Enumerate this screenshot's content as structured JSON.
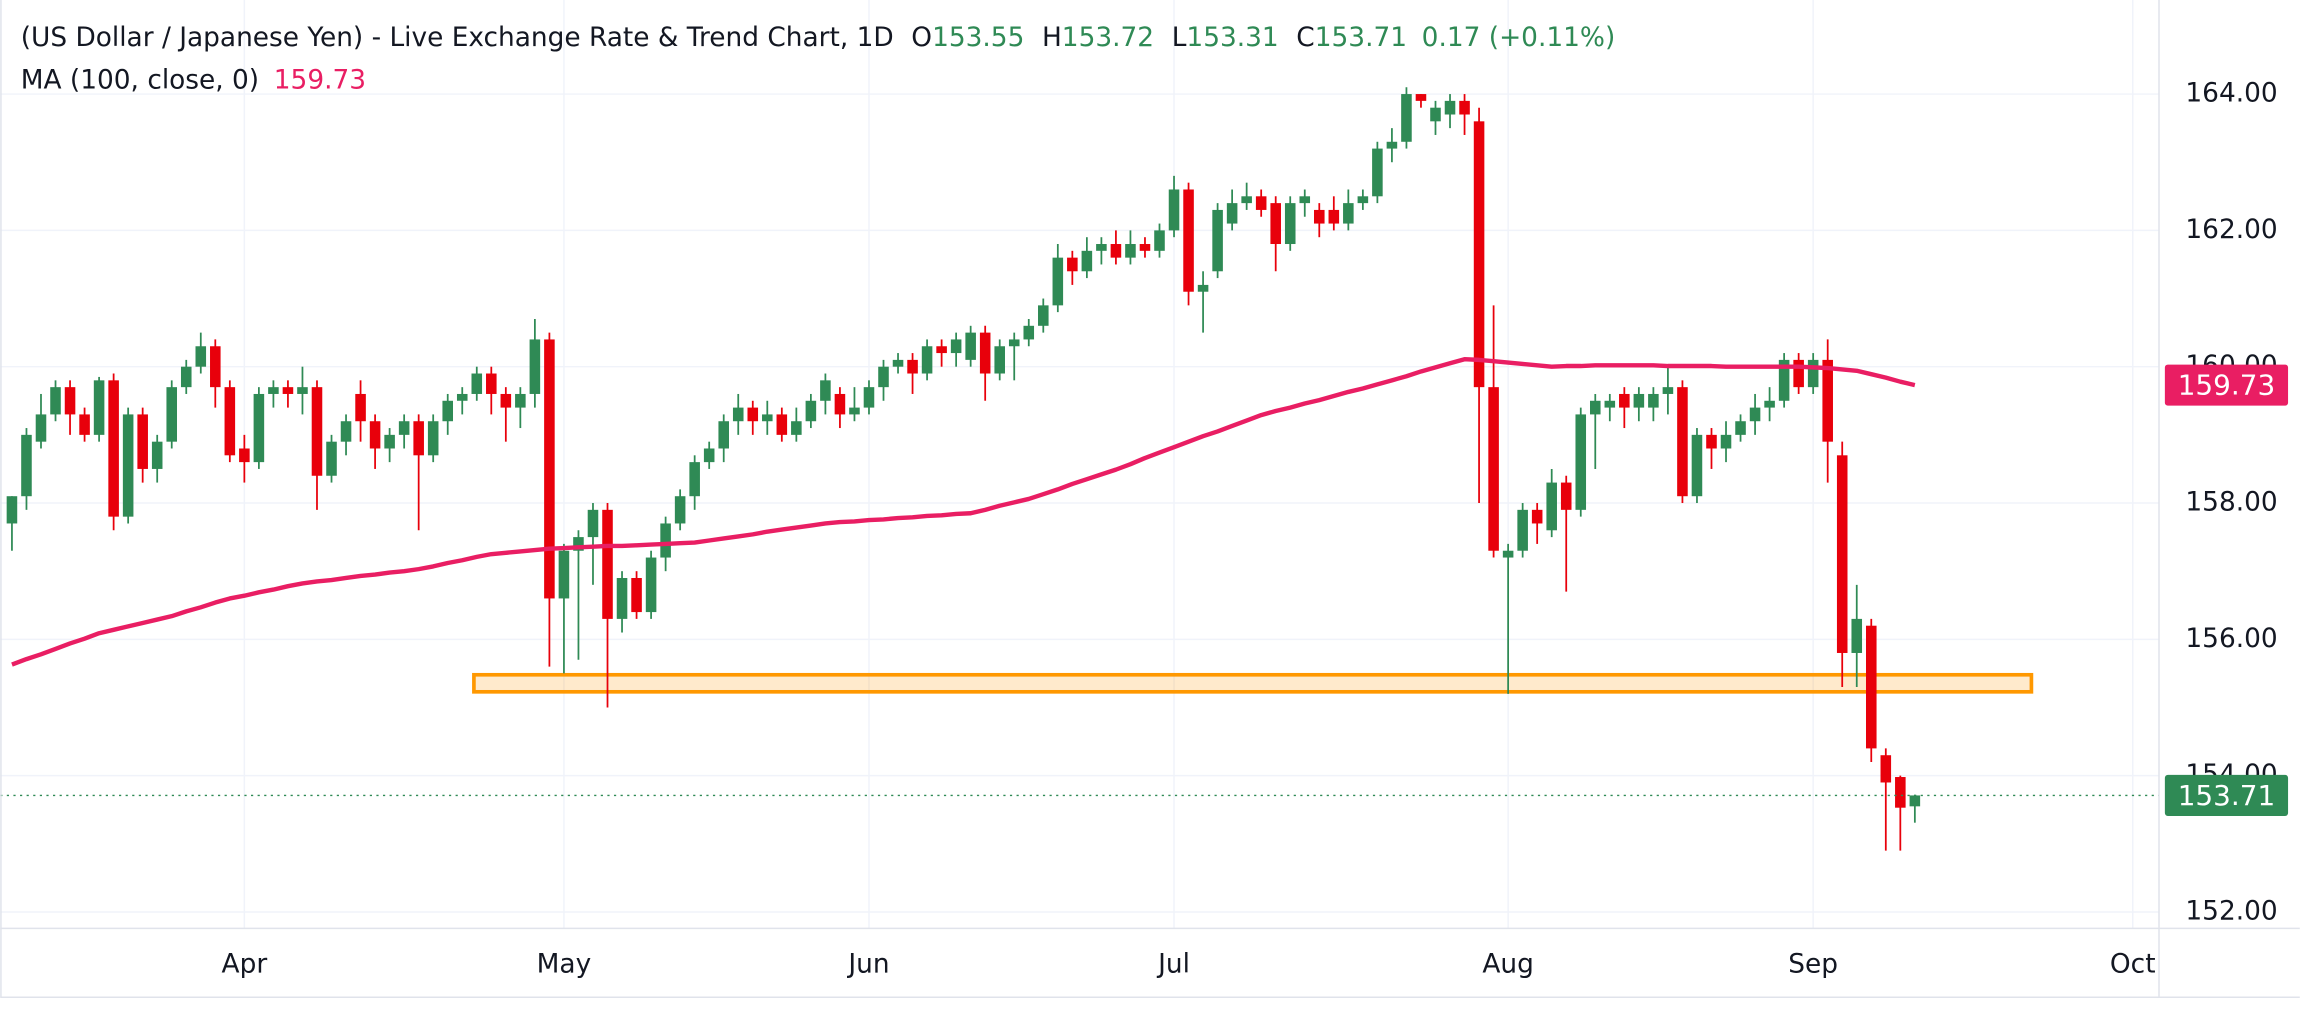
{
  "chart_data": {
    "type": "candlestick",
    "title": "(US Dollar / Japanese Yen) - Live Exchange Rate & Trend Chart, 1D",
    "ohlc_labels": [
      "O",
      "H",
      "L",
      "C"
    ],
    "change_label": "0.17 (+0.11%)",
    "up_color": "#2f8a55",
    "down_color": "#e8000b",
    "grid": true,
    "ylim": [
      151.76,
      165.38
    ],
    "yticks": [
      {
        "value": 152,
        "label": "152.00"
      },
      {
        "value": 154,
        "label": "154.00"
      },
      {
        "value": 156,
        "label": "156.00"
      },
      {
        "value": 158,
        "label": "158.00"
      },
      {
        "value": 160,
        "label": "160.00"
      },
      {
        "value": 162,
        "label": "162.00"
      },
      {
        "value": 164,
        "label": "164.00"
      }
    ],
    "zone": {
      "low": 155.23,
      "high": 155.48,
      "color": "#ff9800"
    },
    "categories": [
      null,
      null,
      null,
      null,
      null,
      null,
      null,
      null,
      null,
      null,
      null,
      null,
      null,
      null,
      null,
      null,
      "Apr",
      null,
      null,
      null,
      null,
      null,
      null,
      null,
      null,
      null,
      null,
      null,
      null,
      null,
      null,
      null,
      null,
      null,
      null,
      null,
      null,
      null,
      "May",
      null,
      null,
      null,
      null,
      null,
      null,
      null,
      null,
      null,
      null,
      null,
      null,
      null,
      null,
      null,
      null,
      null,
      null,
      null,
      null,
      "Jun",
      null,
      null,
      null,
      null,
      null,
      null,
      null,
      null,
      null,
      null,
      null,
      null,
      null,
      null,
      null,
      null,
      null,
      null,
      null,
      null,
      "Jul",
      null,
      null,
      null,
      null,
      null,
      null,
      null,
      null,
      null,
      null,
      null,
      null,
      null,
      null,
      null,
      null,
      null,
      null,
      null,
      null,
      null,
      null,
      "Aug",
      null,
      null,
      null,
      null,
      null,
      null,
      null,
      null,
      null,
      null,
      null,
      null,
      null,
      null,
      null,
      null,
      null,
      null,
      null,
      null,
      "Sep",
      null,
      null,
      null,
      null,
      null,
      null,
      null,
      null,
      null,
      null,
      null,
      null,
      null,
      null,
      null,
      null,
      null,
      null,
      null,
      null,
      null,
      "Oct",
      null
    ],
    "ohlc": {
      "open": [
        157.7,
        158.1,
        158.9,
        159.3,
        159.7,
        159.3,
        159.0,
        159.8,
        157.8,
        159.3,
        158.5,
        158.9,
        159.7,
        160.0,
        160.3,
        159.7,
        158.8,
        158.6,
        159.6,
        159.7,
        159.6,
        159.7,
        158.4,
        158.9,
        159.6,
        159.2,
        158.8,
        159.0,
        159.2,
        158.7,
        159.2,
        159.5,
        159.6,
        159.9,
        159.6,
        159.4,
        159.6,
        160.4,
        156.6,
        157.3,
        157.5,
        157.9,
        156.3,
        156.9,
        156.4,
        157.2,
        157.7,
        158.1,
        158.6,
        158.8,
        159.2,
        159.4,
        159.2,
        159.3,
        159.0,
        159.2,
        159.5,
        159.6,
        159.3,
        159.4,
        159.7,
        160.0,
        160.1,
        159.9,
        160.3,
        160.2,
        160.1,
        160.5,
        159.9,
        160.3,
        160.4,
        160.6,
        160.9,
        161.6,
        161.4,
        161.7,
        161.8,
        161.6,
        161.8,
        161.7,
        162.0,
        162.6,
        161.1,
        161.4,
        162.1,
        162.4,
        162.5,
        162.4,
        161.8,
        162.4,
        162.3,
        162.3,
        162.1,
        162.4,
        162.5,
        163.2,
        163.3,
        164.0,
        163.6,
        163.7,
        163.9,
        163.6,
        159.7,
        157.2,
        157.3,
        157.9,
        157.6,
        158.3,
        157.9,
        159.3,
        159.4,
        159.6,
        159.4,
        159.4,
        159.6,
        159.7,
        158.1,
        159.0,
        158.8,
        159.0,
        159.2,
        159.4,
        159.5,
        160.1,
        159.7,
        160.1,
        158.7,
        155.8,
        156.2,
        154.3,
        153.98,
        153.55,
        null,
        null,
        null,
        null,
        null,
        null,
        null,
        null,
        null,
        null,
        null,
        null,
        null,
        null,
        null,
        null
      ],
      "high": [
        158.1,
        159.1,
        159.6,
        159.8,
        159.8,
        159.4,
        159.85,
        159.9,
        159.4,
        159.4,
        159.0,
        159.8,
        160.1,
        160.5,
        160.4,
        159.8,
        159.0,
        159.7,
        159.8,
        159.8,
        160.0,
        159.8,
        159.0,
        159.3,
        159.8,
        159.3,
        159.1,
        159.3,
        159.3,
        159.3,
        159.6,
        159.7,
        160.0,
        160.0,
        159.7,
        159.7,
        160.7,
        160.5,
        157.4,
        157.6,
        158.0,
        158.0,
        157.0,
        157.0,
        157.3,
        157.8,
        158.2,
        158.7,
        158.9,
        159.3,
        159.6,
        159.5,
        159.5,
        159.4,
        159.4,
        159.6,
        159.9,
        159.7,
        159.7,
        159.8,
        160.1,
        160.2,
        160.2,
        160.4,
        160.4,
        160.5,
        160.6,
        160.6,
        160.4,
        160.5,
        160.7,
        161.0,
        161.8,
        161.7,
        161.9,
        161.9,
        162.0,
        162.0,
        161.9,
        162.1,
        162.8,
        162.7,
        161.4,
        162.4,
        162.6,
        162.7,
        162.6,
        162.5,
        162.5,
        162.6,
        162.4,
        162.5,
        162.6,
        162.6,
        163.3,
        163.5,
        164.1,
        164.0,
        163.9,
        164.0,
        164.0,
        163.8,
        160.9,
        157.4,
        158.0,
        158.0,
        158.5,
        158.4,
        159.4,
        159.6,
        159.6,
        159.7,
        159.7,
        159.7,
        160.0,
        159.8,
        159.1,
        159.1,
        159.2,
        159.3,
        159.6,
        159.7,
        160.2,
        160.2,
        160.2,
        160.4,
        158.9,
        156.8,
        156.3,
        154.4,
        154.0,
        153.72,
        null,
        null,
        null,
        null,
        null,
        null,
        null,
        null,
        null,
        null,
        null,
        null,
        null,
        null,
        null,
        null
      ],
      "low": [
        157.3,
        157.9,
        158.8,
        159.2,
        159.0,
        158.9,
        158.9,
        157.6,
        157.7,
        158.3,
        158.3,
        158.8,
        159.6,
        159.9,
        159.4,
        158.6,
        158.3,
        158.5,
        159.4,
        159.4,
        159.3,
        157.9,
        158.3,
        158.7,
        158.9,
        158.5,
        158.6,
        158.8,
        157.6,
        158.6,
        159.0,
        159.3,
        159.5,
        159.3,
        158.9,
        159.1,
        159.4,
        155.6,
        155.5,
        155.7,
        156.8,
        155.0,
        156.1,
        156.3,
        156.3,
        157.0,
        157.6,
        157.9,
        158.5,
        158.6,
        159.0,
        159.0,
        159.0,
        158.9,
        158.9,
        159.1,
        159.3,
        159.1,
        159.2,
        159.3,
        159.5,
        159.9,
        159.6,
        159.8,
        160.0,
        160.0,
        160.0,
        159.5,
        159.8,
        159.8,
        160.3,
        160.5,
        160.8,
        161.2,
        161.3,
        161.5,
        161.5,
        161.5,
        161.6,
        161.6,
        161.9,
        160.9,
        160.5,
        161.3,
        162.0,
        162.3,
        162.2,
        161.4,
        161.7,
        162.2,
        161.9,
        162.0,
        162.0,
        162.3,
        162.4,
        163.0,
        163.2,
        163.8,
        163.4,
        163.5,
        163.4,
        158.0,
        157.2,
        155.2,
        157.2,
        157.4,
        157.5,
        156.7,
        157.8,
        158.5,
        159.2,
        159.1,
        159.2,
        159.2,
        159.3,
        158.0,
        158.0,
        158.5,
        158.6,
        158.9,
        159.0,
        159.2,
        159.4,
        159.6,
        159.6,
        158.3,
        155.3,
        155.3,
        154.2,
        152.9,
        152.9,
        153.31,
        null,
        null,
        null,
        null,
        null,
        null,
        null,
        null,
        null,
        null,
        null,
        null,
        null,
        null,
        null,
        null
      ],
      "close": [
        158.1,
        159.0,
        159.3,
        159.7,
        159.3,
        159.0,
        159.8,
        157.8,
        159.3,
        158.5,
        158.9,
        159.7,
        160.0,
        160.3,
        159.7,
        158.7,
        158.6,
        159.6,
        159.7,
        159.6,
        159.7,
        158.4,
        158.9,
        159.2,
        159.2,
        158.8,
        159.0,
        159.2,
        158.7,
        159.2,
        159.5,
        159.6,
        159.9,
        159.6,
        159.4,
        159.6,
        160.4,
        156.6,
        157.3,
        157.5,
        157.9,
        156.3,
        156.9,
        156.4,
        157.2,
        157.7,
        158.1,
        158.6,
        158.8,
        159.2,
        159.4,
        159.2,
        159.3,
        159.0,
        159.2,
        159.5,
        159.8,
        159.3,
        159.4,
        159.7,
        160.0,
        160.1,
        159.9,
        160.3,
        160.2,
        160.4,
        160.5,
        159.9,
        160.3,
        160.4,
        160.6,
        160.9,
        161.6,
        161.4,
        161.7,
        161.8,
        161.6,
        161.8,
        161.7,
        162.0,
        162.6,
        161.1,
        161.2,
        162.3,
        162.4,
        162.5,
        162.3,
        161.8,
        162.4,
        162.5,
        162.1,
        162.1,
        162.4,
        162.5,
        163.2,
        163.3,
        164.0,
        163.9,
        163.8,
        163.9,
        163.7,
        159.7,
        157.3,
        157.3,
        157.9,
        157.7,
        158.3,
        157.9,
        159.3,
        159.5,
        159.5,
        159.4,
        159.6,
        159.6,
        159.7,
        158.1,
        159.0,
        158.8,
        159.0,
        159.2,
        159.4,
        159.5,
        160.1,
        159.7,
        160.1,
        158.9,
        155.8,
        156.3,
        154.4,
        153.9,
        153.53,
        153.71,
        null,
        null,
        null,
        null,
        null,
        null,
        null,
        null,
        null,
        null,
        null,
        null,
        null,
        null,
        null,
        null
      ]
    },
    "series": [
      {
        "name": "MA (100, close, 0)",
        "color": "#e91e63",
        "values": [
          155.63,
          155.71,
          155.78,
          155.86,
          155.94,
          156.01,
          156.09,
          156.14,
          156.19,
          156.24,
          156.29,
          156.34,
          156.41,
          156.47,
          156.54,
          156.6,
          156.64,
          156.69,
          156.73,
          156.78,
          156.82,
          156.85,
          156.87,
          156.9,
          156.93,
          156.95,
          156.98,
          157.0,
          157.03,
          157.07,
          157.12,
          157.16,
          157.21,
          157.25,
          157.27,
          157.29,
          157.31,
          157.33,
          157.34,
          157.35,
          157.36,
          157.37,
          157.37,
          157.38,
          157.39,
          157.4,
          157.41,
          157.42,
          157.45,
          157.48,
          157.51,
          157.54,
          157.58,
          157.61,
          157.64,
          157.67,
          157.7,
          157.72,
          157.73,
          157.75,
          157.76,
          157.78,
          157.79,
          157.81,
          157.82,
          157.84,
          157.85,
          157.9,
          157.96,
          158.01,
          158.06,
          158.13,
          158.2,
          158.28,
          158.35,
          158.42,
          158.49,
          158.57,
          158.66,
          158.74,
          158.82,
          158.9,
          158.98,
          159.05,
          159.13,
          159.21,
          159.29,
          159.35,
          159.4,
          159.46,
          159.51,
          159.57,
          159.63,
          159.68,
          159.74,
          159.8,
          159.86,
          159.93,
          159.99,
          160.05,
          160.11,
          160.1,
          160.08,
          160.06,
          160.04,
          160.02,
          160.0,
          160.01,
          160.01,
          160.02,
          160.02,
          160.02,
          160.02,
          160.02,
          160.01,
          160.01,
          160.01,
          160.01,
          160.0,
          160.0,
          160.0,
          160.0,
          160.0,
          160.0,
          159.99,
          159.98,
          159.96,
          159.94,
          159.89,
          159.84,
          159.78,
          159.73,
          null,
          null,
          null,
          null,
          null,
          null,
          null,
          null,
          null,
          null,
          null,
          null,
          null,
          null,
          null,
          null
        ]
      }
    ]
  }
}
